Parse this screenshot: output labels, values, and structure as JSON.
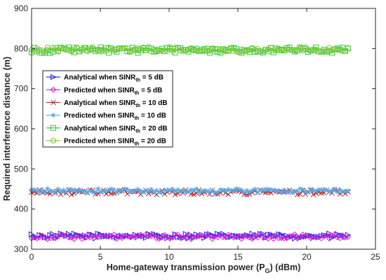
{
  "chart_data": {
    "type": "scatter",
    "title": "",
    "xlabel": {
      "main": "Home-gateway transmission power (P",
      "sub": "G",
      "tail": ") (dBm)"
    },
    "ylabel": "Required interference distance  (m)",
    "xlim": [
      0,
      25
    ],
    "ylim": [
      300,
      900
    ],
    "xticks": [
      0,
      5,
      10,
      15,
      20,
      25
    ],
    "yticks": [
      300,
      400,
      500,
      600,
      700,
      800,
      900
    ],
    "grid": false,
    "legend_position": "center-left",
    "x_range": [
      0,
      23
    ],
    "series": [
      {
        "name_parts": [
          "Analytical when SINR",
          "th",
          " = 5 dB"
        ],
        "marker": "triangle-right",
        "color": "#1f1fd8",
        "y_mean": 333,
        "y_jitter": 6
      },
      {
        "name_parts": [
          "Predicted when SINR",
          "th",
          " = 5 dB"
        ],
        "marker": "diamond",
        "color": "#d020d8",
        "y_mean": 331,
        "y_jitter": 6
      },
      {
        "name_parts": [
          "Analytical when SINR",
          "th",
          " = 10 dB"
        ],
        "marker": "x",
        "color": "#a52a2a",
        "y_mean": 442,
        "y_jitter": 6
      },
      {
        "name_parts": [
          "Predicted when SINR",
          "th",
          " = 10 dB"
        ],
        "marker": "star",
        "color": "#5aa8e6",
        "y_mean": 446,
        "y_jitter": 5
      },
      {
        "name_parts": [
          "Analytical when SINR",
          "th",
          " = 20 dB"
        ],
        "marker": "square",
        "color": "#35c935",
        "y_mean": 796,
        "y_jitter": 7
      },
      {
        "name_parts": [
          "Predicted when SINR",
          "th",
          " = 20 dB"
        ],
        "marker": "circle",
        "color": "#7bc73a",
        "y_mean": 798,
        "y_jitter": 6
      }
    ]
  }
}
